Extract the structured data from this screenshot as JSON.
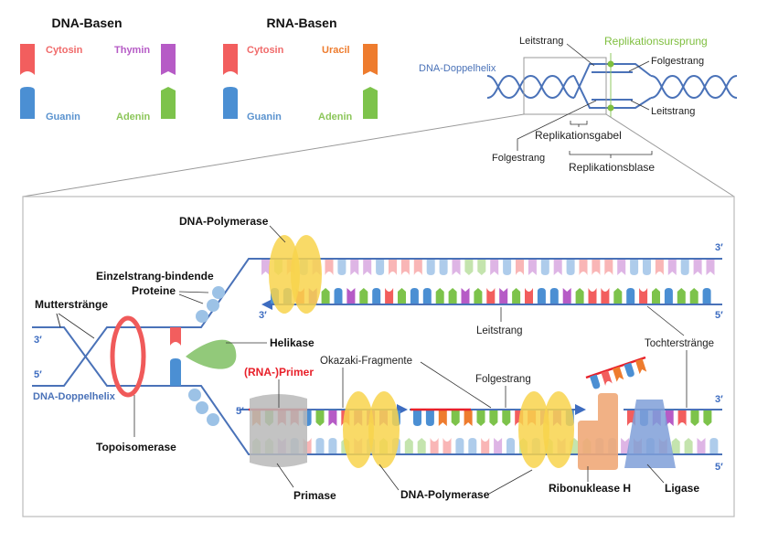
{
  "legend": {
    "dna_title": "DNA-Basen",
    "rna_title": "RNA-Basen",
    "dna": {
      "cytosin": "Cytosin",
      "thymin": "Thymin",
      "guanin": "Guanin",
      "adenin": "Adenin"
    },
    "rna": {
      "cytosin": "Cytosin",
      "uracil": "Uracil",
      "guanin": "Guanin",
      "adenin": "Adenin"
    }
  },
  "colors": {
    "C": "#f25e5e",
    "G": "#4b8fd3",
    "T": "#b65bc6",
    "U": "#ee7c2e",
    "A": "#7dc34b",
    "strand": "#4a72b8",
    "primer": "#e8202a",
    "polymerase": "#f8d44c",
    "helicase": "#92c97a",
    "topoisomerase": "#f05a5a",
    "primase": "#b9b9b9",
    "ribonuklease": "#f0a878",
    "ligase": "#7f9fd8",
    "origin": "#7fbf3f"
  },
  "overview": {
    "helix_label": "DNA-Doppelhelix",
    "leitstrang_top": "Leitstrang",
    "origin": "Replikationsursprung",
    "folgestrang_top": "Folgestrang",
    "leitstrang_bottom": "Leitstrang",
    "folgestrang_bottom": "Folgestrang",
    "gabel": "Replikationsgabel",
    "blase": "Replikationsblase"
  },
  "main": {
    "dna_polymerase_top": "DNA-Polymerase",
    "ssb_line1": "Einzelstrang-bindende",
    "ssb_line2": "Proteine",
    "mutterstraenge": "Mutterstränge",
    "helix_label": "DNA-Doppelhelix",
    "helikase": "Helikase",
    "topoisomerase": "Topoisomerase",
    "primer": "(RNA-)Primer",
    "okazaki": "Okazaki-Fragmente",
    "primase": "Primase",
    "dna_polymerase_bottom": "DNA-Polymerase",
    "leitstrang": "Leitstrang",
    "folgestrang": "Folgestrang",
    "tochterstraenge": "Tochterstränge",
    "ribonuklease": "Ribonuklease H",
    "ligase": "Ligase",
    "ends": {
      "left_3": "3′",
      "left_5": "5′",
      "top_right_3": "3′",
      "leading_3": "3′",
      "leading_5": "5′",
      "lag_5": "5′",
      "lag_right_3": "3′",
      "bottom_right_5": "5′"
    }
  },
  "sequences": {
    "top_parent": "TACGTCGTTGCCCGGTAATGCTGTGCCCTGGCTGTTATT",
    "leading": "GGCTAGTAGCAGGAATACTACGGTACCAGCAGAAGTAUUA",
    "lag_fragment1": "UACCGATCTTTGCT",
    "lag_fragment2": "GGUAUAAACCTTGAGGG",
    "lag_fragment3": "CGTTCAAT",
    "bottom_parent": "AATGCGGATGAGAACCGGCTGAGATAAGGTCGCAATGTA",
    "floating_primer": "GCUGU"
  }
}
